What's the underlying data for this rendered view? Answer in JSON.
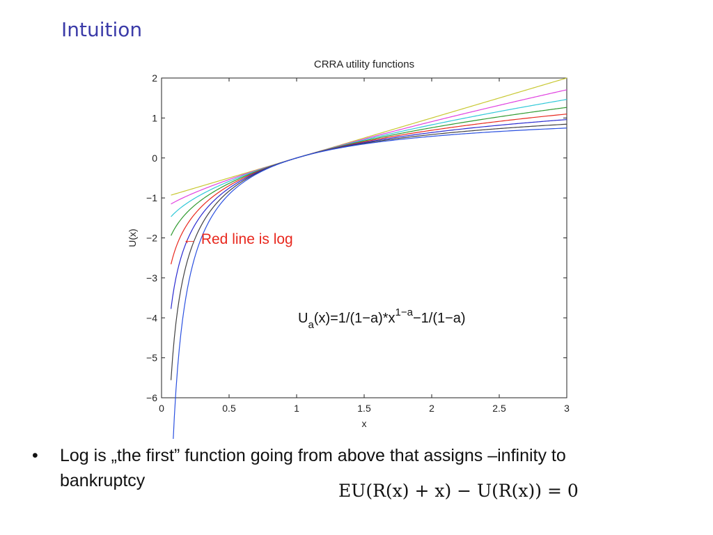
{
  "slide": {
    "title": "Intuition",
    "bullet_symbol": "•",
    "bullet_text": "Log is „the first” function going from above that assigns –infinity to bankruptcy",
    "equation": "EU(R(x) + x) − U(R(x)) = 0"
  },
  "chart_data": {
    "type": "line",
    "title": "CRRA utility functions",
    "xlabel": "x",
    "ylabel": "U(x)",
    "xlim": [
      0,
      3
    ],
    "ylim": [
      -6,
      2
    ],
    "xticks": [
      0,
      0.5,
      1,
      1.5,
      2,
      2.5,
      3
    ],
    "xtick_labels": [
      "0",
      "0.5",
      "1",
      "1.5",
      "2",
      "2.5",
      "3"
    ],
    "yticks": [
      2,
      1,
      0,
      -1,
      -2,
      -3,
      -4,
      -5,
      -6
    ],
    "ytick_labels": [
      "2",
      "1",
      "0",
      "−1",
      "−2",
      "−3",
      "−4",
      "−5",
      "−6"
    ],
    "x_start": 0.07,
    "x_end": 3,
    "series": [
      {
        "a": 0.0,
        "color": "#c8c832"
      },
      {
        "a": 0.25,
        "color": "#e040e0"
      },
      {
        "a": 0.5,
        "color": "#30c8d8"
      },
      {
        "a": 0.75,
        "color": "#2f9a2f"
      },
      {
        "a": 1.0,
        "color": "#e8281e"
      },
      {
        "a": 1.25,
        "color": "#2a2ad0"
      },
      {
        "a": 1.5,
        "color": "#404040"
      },
      {
        "a": 1.75,
        "color": "#2a50e0"
      }
    ],
    "annotations": [
      {
        "text": "← Red line is log",
        "color": "#e8281e"
      },
      {
        "text_main": "U",
        "text_sub": "a",
        "text_rest": "(x)=1/(1−a)*x",
        "text_sup": "1−a",
        "text_tail": "−1/(1−a)"
      }
    ],
    "grid": false
  }
}
